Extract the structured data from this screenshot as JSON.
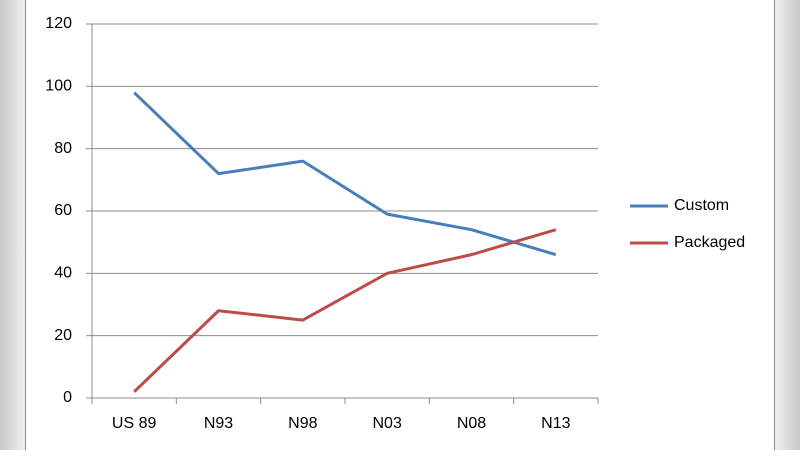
{
  "chart_data": {
    "type": "line",
    "categories": [
      "US 89",
      "N93",
      "N98",
      "N03",
      "N08",
      "N13"
    ],
    "series": [
      {
        "name": "Custom",
        "color": "#4a7ebb",
        "values": [
          98,
          72,
          76,
          59,
          54,
          46
        ]
      },
      {
        "name": "Packaged",
        "color": "#be4b48",
        "values": [
          2,
          28,
          25,
          40,
          46,
          54
        ]
      }
    ],
    "ylim": [
      0,
      120
    ],
    "yticks": [
      0,
      20,
      40,
      60,
      80,
      100,
      120
    ],
    "grid": true,
    "legend": "right"
  }
}
